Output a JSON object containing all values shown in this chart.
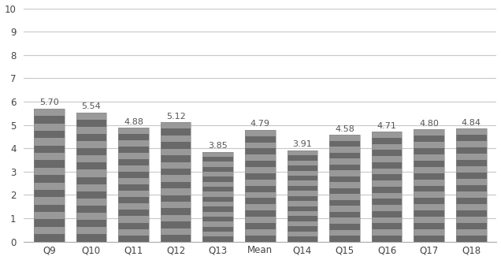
{
  "categories": [
    "Q9",
    "Q10",
    "Q11",
    "Q12",
    "Q13",
    "Mean",
    "Q14",
    "Q15",
    "Q16",
    "Q17",
    "Q18"
  ],
  "values": [
    5.7,
    5.54,
    4.88,
    5.12,
    3.85,
    4.79,
    3.91,
    4.58,
    4.71,
    4.8,
    4.84
  ],
  "bar_color_dark": "#787878",
  "bar_color_light": "#a0a0a0",
  "ylim": [
    0,
    10
  ],
  "yticks": [
    0,
    1,
    2,
    3,
    4,
    5,
    6,
    7,
    8,
    9,
    10
  ],
  "label_fontsize": 8.0,
  "tick_fontsize": 8.5,
  "background_color": "#ffffff",
  "grid_color": "#c8c8c8",
  "bar_width": 0.72,
  "label_color": "#555555",
  "stripe_count": 18,
  "stripe_dark": "#696969",
  "stripe_light": "#999999"
}
